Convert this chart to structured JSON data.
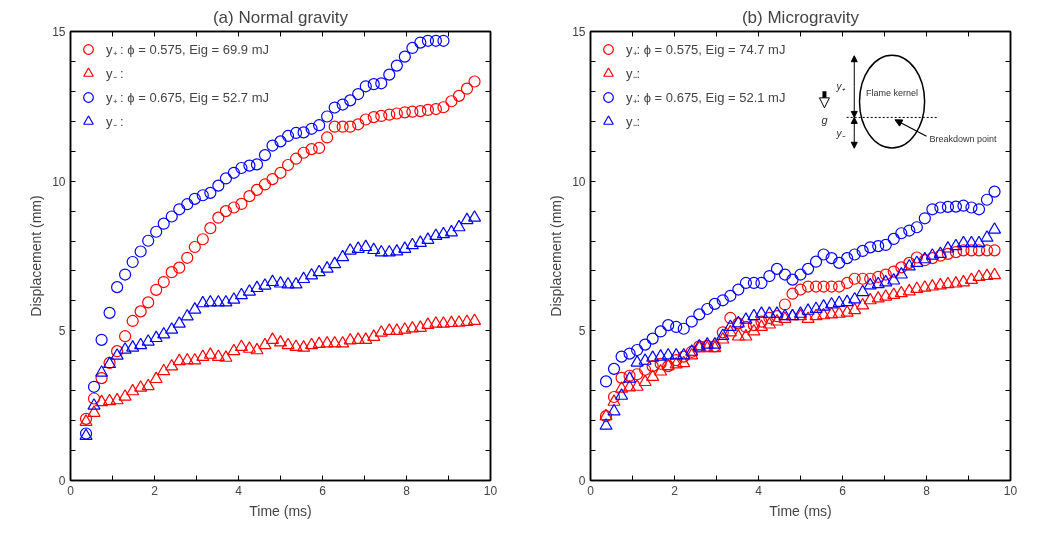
{
  "chart_data": [
    {
      "type": "scatter",
      "title": "(a) Normal gravity",
      "xlabel": "Time (ms)",
      "ylabel": "Displacement (mm)",
      "xlim": [
        0,
        10
      ],
      "ylim": [
        0,
        15
      ],
      "xticks": [
        0,
        {
          "value": 1,
          "label": null
        },
        2,
        {
          "value": 3,
          "label": null
        },
        4,
        {
          "value": 5,
          "label": null
        },
        6,
        {
          "value": 7,
          "label": null
        },
        8,
        {
          "value": 9,
          "label": null
        },
        10
      ],
      "yticks": [
        0,
        {
          "value": 1,
          "label": null
        },
        {
          "value": 2,
          "label": null
        },
        {
          "value": 3,
          "label": null
        },
        {
          "value": 4,
          "label": null
        },
        5,
        {
          "value": 6,
          "label": null
        },
        {
          "value": 7,
          "label": null
        },
        {
          "value": 8,
          "label": null
        },
        {
          "value": 9,
          "label": null
        },
        10,
        {
          "value": 11,
          "label": null
        },
        {
          "value": 12,
          "label": null
        },
        {
          "value": 13,
          "label": null
        },
        {
          "value": 14,
          "label": null
        },
        15
      ],
      "grid": false,
      "legend": "top left",
      "x": [
        0.37,
        0.56,
        0.74,
        0.93,
        1.11,
        1.3,
        1.48,
        1.67,
        1.85,
        2.04,
        2.22,
        2.41,
        2.59,
        2.78,
        2.96,
        3.15,
        3.33,
        3.52,
        3.7,
        3.89,
        4.07,
        4.26,
        4.44,
        4.63,
        4.81,
        5.0,
        5.18,
        5.37,
        5.55,
        5.74,
        5.92,
        6.11,
        6.29,
        6.48,
        6.66,
        6.85,
        7.03,
        7.22,
        7.4,
        7.59,
        7.77,
        7.96,
        8.14,
        8.33,
        8.51,
        8.7,
        8.88,
        9.07,
        9.25,
        9.44,
        9.62
      ],
      "series": [
        {
          "name": "y₊ : ϕ = 0.575, Eig = 69.9 mJ",
          "color": "#ff0000",
          "marker": "circle",
          "values": [
            2.06,
            2.74,
            3.42,
            3.93,
            4.32,
            4.82,
            5.33,
            5.65,
            5.95,
            6.37,
            6.63,
            6.96,
            7.11,
            7.44,
            7.8,
            8.06,
            8.43,
            8.78,
            9.0,
            9.12,
            9.24,
            9.5,
            9.71,
            9.89,
            10.07,
            10.28,
            10.54,
            10.75,
            10.95,
            11.07,
            11.11,
            11.46,
            11.82,
            11.82,
            11.82,
            11.9,
            12.06,
            12.14,
            12.18,
            12.22,
            12.26,
            12.3,
            12.32,
            12.34,
            12.38,
            12.41,
            12.47,
            12.67,
            12.85,
            13.09,
            13.33
          ]
        },
        {
          "name": "y₋ :",
          "color": "#ff0000",
          "marker": "triangle",
          "values": [
            1.96,
            2.26,
            2.62,
            2.65,
            2.68,
            2.8,
            2.98,
            3.1,
            3.15,
            3.39,
            3.65,
            3.81,
            3.99,
            4.01,
            4.01,
            4.13,
            4.2,
            4.13,
            4.1,
            4.32,
            4.46,
            4.4,
            4.35,
            4.52,
            4.7,
            4.61,
            4.52,
            4.46,
            4.44,
            4.52,
            4.56,
            4.58,
            4.58,
            4.58,
            4.68,
            4.7,
            4.7,
            4.8,
            4.94,
            5.0,
            5.0,
            5.04,
            5.08,
            5.1,
            5.2,
            5.24,
            5.24,
            5.26,
            5.27,
            5.3,
            5.33
          ]
        },
        {
          "name": "y₊ : ϕ = 0.675, Eig = 52.7 mJ",
          "color": "#0000ff",
          "marker": "circle",
          "values": [
            1.57,
            3.13,
            4.7,
            5.6,
            6.46,
            6.88,
            7.3,
            7.65,
            8.01,
            8.31,
            8.58,
            8.82,
            9.06,
            9.23,
            9.41,
            9.53,
            9.61,
            9.85,
            10.09,
            10.28,
            10.44,
            10.52,
            10.56,
            10.87,
            11.19,
            11.33,
            11.51,
            11.61,
            11.63,
            11.75,
            11.87,
            12.16,
            12.46,
            12.56,
            12.7,
            12.91,
            13.17,
            13.24,
            13.27,
            13.56,
            13.86,
            14.16,
            14.45,
            14.63,
            14.69,
            14.69,
            14.69,
            null,
            null,
            null,
            null
          ]
        },
        {
          "name": "y₋ :",
          "color": "#0000ff",
          "marker": "triangle",
          "values": [
            1.49,
            2.5,
            3.6,
            3.89,
            4.17,
            4.37,
            4.44,
            4.52,
            4.64,
            4.76,
            4.88,
            5.04,
            5.24,
            5.48,
            5.71,
            5.92,
            5.95,
            5.95,
            5.95,
            6.04,
            6.19,
            6.31,
            6.43,
            6.51,
            6.63,
            6.58,
            6.55,
            6.55,
            6.73,
            6.85,
            6.96,
            7.08,
            7.23,
            7.46,
            7.68,
            7.74,
            7.8,
            7.7,
            7.62,
            7.62,
            7.65,
            7.74,
            7.86,
            7.94,
            8.04,
            8.17,
            8.23,
            8.29,
            8.46,
            8.7,
            8.78
          ]
        }
      ]
    },
    {
      "type": "scatter",
      "title": "(b) Microgravity",
      "xlabel": "Time (ms)",
      "ylabel": "Displacement (mm)",
      "xlim": [
        0,
        10
      ],
      "ylim": [
        0,
        15
      ],
      "xticks": [
        0,
        {
          "value": 1,
          "label": null
        },
        2,
        {
          "value": 3,
          "label": null
        },
        4,
        {
          "value": 5,
          "label": null
        },
        6,
        {
          "value": 7,
          "label": null
        },
        8,
        {
          "value": 9,
          "label": null
        },
        10
      ],
      "yticks": [
        0,
        {
          "value": 1,
          "label": null
        },
        {
          "value": 2,
          "label": null
        },
        {
          "value": 3,
          "label": null
        },
        {
          "value": 4,
          "label": null
        },
        5,
        {
          "value": 6,
          "label": null
        },
        {
          "value": 7,
          "label": null
        },
        {
          "value": 8,
          "label": null
        },
        {
          "value": 9,
          "label": null
        },
        10,
        {
          "value": 11,
          "label": null
        },
        {
          "value": 12,
          "label": null
        },
        {
          "value": 13,
          "label": null
        },
        {
          "value": 14,
          "label": null
        },
        15
      ],
      "grid": false,
      "legend": "top left",
      "annotations": [
        "Flame kernel",
        "Breakdown point",
        "y₊",
        "y₋",
        "g"
      ],
      "x": [
        0.37,
        0.56,
        0.74,
        0.93,
        1.11,
        1.3,
        1.48,
        1.67,
        1.85,
        2.04,
        2.22,
        2.41,
        2.59,
        2.78,
        2.96,
        3.15,
        3.33,
        3.52,
        3.7,
        3.89,
        4.07,
        4.26,
        4.44,
        4.63,
        4.81,
        5.0,
        5.18,
        5.37,
        5.55,
        5.74,
        5.92,
        6.11,
        6.29,
        6.48,
        6.66,
        6.85,
        7.03,
        7.22,
        7.4,
        7.59,
        7.77,
        7.96,
        8.14,
        8.33,
        8.51,
        8.7,
        8.88,
        9.07,
        9.25,
        9.44,
        9.62
      ],
      "series": [
        {
          "name": "y₊: ϕ = 0.575, Eig = 74.7 mJ",
          "color": "#ff0000",
          "marker": "circle",
          "values": [
            2.15,
            2.79,
            3.43,
            3.5,
            3.55,
            3.7,
            3.82,
            3.9,
            3.82,
            4.02,
            4.14,
            4.3,
            4.48,
            4.5,
            4.48,
            4.95,
            5.43,
            5.25,
            5.13,
            5.19,
            5.31,
            5.43,
            5.49,
            5.88,
            6.24,
            6.38,
            6.48,
            6.48,
            6.48,
            6.48,
            6.48,
            6.6,
            6.74,
            6.74,
            6.74,
            6.8,
            6.88,
            6.98,
            7.12,
            7.27,
            7.45,
            7.36,
            7.43,
            7.51,
            7.57,
            7.63,
            7.69,
            7.69,
            7.69,
            7.69,
            7.69
          ]
        },
        {
          "name": "y₋:",
          "color": "#ff0000",
          "marker": "triangle",
          "values": [
            2.15,
            2.63,
            3.07,
            3.11,
            3.13,
            3.29,
            3.46,
            3.64,
            3.82,
            3.88,
            3.92,
            4.18,
            4.42,
            4.42,
            4.42,
            4.71,
            4.95,
            4.81,
            4.81,
            4.98,
            5.13,
            5.21,
            5.31,
            5.4,
            5.49,
            5.49,
            5.4,
            5.49,
            5.52,
            5.55,
            5.57,
            5.61,
            5.69,
            5.85,
            6.02,
            6.08,
            6.14,
            6.2,
            6.26,
            6.32,
            6.4,
            6.44,
            6.48,
            6.52,
            6.56,
            6.58,
            6.62,
            6.7,
            6.8,
            6.83,
            6.86
          ]
        },
        {
          "name": "y₊: ϕ = 0.675, Eig = 52.1 mJ",
          "color": "#0000ff",
          "marker": "circle",
          "values": [
            3.31,
            3.73,
            4.14,
            4.24,
            4.36,
            4.54,
            4.74,
            4.98,
            5.19,
            5.13,
            5.07,
            5.31,
            5.55,
            5.73,
            5.9,
            6.02,
            6.17,
            6.38,
            6.6,
            6.6,
            6.6,
            6.83,
            7.07,
            6.88,
            6.71,
            6.88,
            7.07,
            7.31,
            7.55,
            7.43,
            7.27,
            7.43,
            7.55,
            7.67,
            7.79,
            7.83,
            7.87,
            8.07,
            8.26,
            8.35,
            8.46,
            8.76,
            9.06,
            9.12,
            9.14,
            9.15,
            9.18,
            9.12,
            9.06,
            9.38,
            9.65
          ]
        },
        {
          "name": "y₋:",
          "color": "#0000ff",
          "marker": "triangle",
          "values": [
            1.83,
            2.31,
            2.83,
            3.4,
            3.94,
            4.0,
            4.1,
            4.14,
            4.18,
            4.18,
            4.18,
            4.3,
            4.48,
            4.54,
            4.54,
            4.83,
            5.13,
            5.25,
            5.37,
            5.49,
            5.57,
            5.57,
            5.57,
            5.49,
            5.49,
            5.57,
            5.67,
            5.73,
            5.81,
            5.88,
            5.93,
            5.96,
            6.05,
            6.29,
            6.52,
            6.56,
            6.62,
            6.68,
            6.88,
            7.15,
            7.27,
            7.39,
            7.51,
            7.57,
            7.75,
            7.83,
            7.93,
            7.93,
            7.93,
            8.11,
            8.38
          ]
        }
      ]
    }
  ]
}
